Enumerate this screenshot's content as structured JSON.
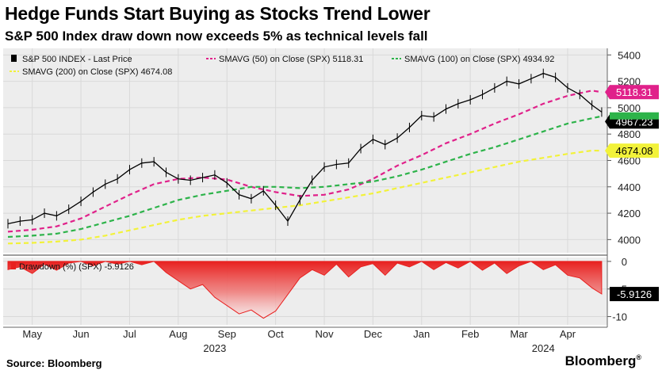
{
  "header": {
    "title": "Hedge Funds Start Buying as Stocks Trend Lower",
    "subtitle": "S&P 500 Index draw down now exceeds 5% as technical levels fall"
  },
  "footer": {
    "source": "Source: Bloomberg",
    "brand": "Bloomberg"
  },
  "colors": {
    "price": "#000000",
    "sma50": "#e0218a",
    "sma100": "#2db34a",
    "sma200": "#f2f23a",
    "drawdown": "#e8201f",
    "grid": "#d9d9d9",
    "panel": "#ededed"
  },
  "chart_data": [
    {
      "type": "line",
      "legend": [
        {
          "key": "price",
          "label": "S&P 500 INDEX - Last Price"
        },
        {
          "key": "sma50",
          "label": "SMAVG (50)  on Close (SPX) 5118.31"
        },
        {
          "key": "sma100",
          "label": "SMAVG (100)  on Close (SPX) 4934.92"
        },
        {
          "key": "sma200",
          "label": "SMAVG (200)  on Close (SPX) 4674.08"
        }
      ],
      "y_ticks": [
        4000,
        4200,
        4400,
        4600,
        4800,
        5000,
        5200,
        5400
      ],
      "ylim": [
        3900,
        5450
      ],
      "month_ticks": [
        "May",
        "Jun",
        "Jul",
        "Aug",
        "Sep",
        "Oct",
        "Nov",
        "Dec",
        "Jan",
        "Feb",
        "Mar",
        "Apr"
      ],
      "years": [
        "2023",
        "2024"
      ],
      "value_tags": [
        {
          "key": "sma50",
          "text": "5118.31"
        },
        {
          "key": "price",
          "text": "4967.23"
        },
        {
          "key": "sma200",
          "text": "4674.08"
        }
      ],
      "x_range": [
        0,
        12.25
      ],
      "series": [
        {
          "key": "price",
          "name": "S&P 500 INDEX - Last Price",
          "x": [
            0,
            0.25,
            0.5,
            0.75,
            1,
            1.25,
            1.5,
            1.75,
            2,
            2.25,
            2.5,
            2.75,
            3,
            3.25,
            3.5,
            3.75,
            4,
            4.25,
            4.5,
            4.75,
            5,
            5.25,
            5.5,
            5.75,
            6,
            6.25,
            6.5,
            6.75,
            7,
            7.25,
            7.5,
            7.75,
            8,
            8.25,
            8.5,
            8.75,
            9,
            9.25,
            9.5,
            9.75,
            10,
            10.25,
            10.5,
            10.75,
            11,
            11.25,
            11.5,
            11.75,
            12,
            12.2
          ],
          "y": [
            4120,
            4140,
            4150,
            4200,
            4180,
            4230,
            4290,
            4360,
            4420,
            4460,
            4530,
            4580,
            4590,
            4510,
            4460,
            4450,
            4470,
            4490,
            4430,
            4340,
            4310,
            4370,
            4260,
            4140,
            4300,
            4450,
            4550,
            4570,
            4580,
            4690,
            4760,
            4720,
            4770,
            4850,
            4940,
            4930,
            4990,
            5030,
            5060,
            5100,
            5150,
            5200,
            5180,
            5220,
            5260,
            5230,
            5150,
            5100,
            5020,
            4967
          ]
        },
        {
          "key": "sma50",
          "name": "SMAVG (50)",
          "x": [
            0,
            0.5,
            1,
            1.5,
            2,
            2.5,
            3,
            3.5,
            4,
            4.5,
            5,
            5.5,
            6,
            6.5,
            7,
            7.5,
            8,
            8.5,
            9,
            9.5,
            10,
            10.5,
            11,
            11.5,
            12,
            12.2
          ],
          "y": [
            4060,
            4075,
            4100,
            4160,
            4250,
            4340,
            4420,
            4460,
            4470,
            4455,
            4400,
            4360,
            4330,
            4340,
            4380,
            4460,
            4560,
            4640,
            4730,
            4800,
            4880,
            4950,
            5030,
            5090,
            5130,
            5118
          ]
        },
        {
          "key": "sma100",
          "name": "SMAVG (100)",
          "x": [
            0,
            0.5,
            1,
            1.5,
            2,
            2.5,
            3,
            3.5,
            4,
            4.5,
            5,
            5.5,
            6,
            6.5,
            7,
            7.5,
            8,
            8.5,
            9,
            9.5,
            10,
            10.5,
            11,
            11.5,
            12,
            12.2
          ],
          "y": [
            4020,
            4030,
            4045,
            4080,
            4130,
            4180,
            4240,
            4300,
            4340,
            4370,
            4400,
            4400,
            4390,
            4400,
            4420,
            4440,
            4480,
            4530,
            4590,
            4650,
            4700,
            4760,
            4820,
            4880,
            4920,
            4935
          ]
        },
        {
          "key": "sma200",
          "name": "SMAVG (200)",
          "x": [
            0,
            0.5,
            1,
            1.5,
            2,
            2.5,
            3,
            3.5,
            4,
            4.5,
            5,
            5.5,
            6,
            6.5,
            7,
            7.5,
            8,
            8.5,
            9,
            9.5,
            10,
            10.5,
            11,
            11.5,
            12,
            12.2
          ],
          "y": [
            3970,
            3975,
            3985,
            4000,
            4030,
            4070,
            4110,
            4150,
            4180,
            4200,
            4220,
            4240,
            4260,
            4290,
            4320,
            4350,
            4390,
            4430,
            4470,
            4510,
            4550,
            4590,
            4620,
            4650,
            4675,
            4674
          ]
        }
      ]
    },
    {
      "type": "area",
      "title": "Drawdown (%) (SPX) -5.9126",
      "y_ticks": [
        0,
        -5,
        -10
      ],
      "y_tick_labels": [
        "0",
        "-5",
        "-10"
      ],
      "ylim": [
        -11.5,
        0.7
      ],
      "x_range": [
        0,
        12.25
      ],
      "last_value": "-5.9126",
      "series": [
        {
          "name": "Drawdown (%) (SPX)",
          "x": [
            0,
            0.25,
            0.5,
            0.75,
            1,
            1.25,
            1.5,
            1.75,
            2,
            2.25,
            2.5,
            2.75,
            3,
            3.25,
            3.5,
            3.75,
            4,
            4.25,
            4.5,
            4.75,
            5,
            5.25,
            5.5,
            5.75,
            6,
            6.25,
            6.5,
            6.75,
            7,
            7.25,
            7.5,
            7.75,
            8,
            8.25,
            8.5,
            8.75,
            9,
            9.25,
            9.5,
            9.75,
            10,
            10.25,
            10.5,
            10.75,
            11,
            11.25,
            11.5,
            11.75,
            12,
            12.2
          ],
          "y": [
            -1.5,
            -1.0,
            -2.2,
            -0.5,
            -1.6,
            -0.3,
            0,
            -0.8,
            0,
            -0.5,
            0,
            -0.6,
            0,
            -2.0,
            -3.5,
            -5.0,
            -4.2,
            -6.5,
            -8.0,
            -9.5,
            -8.8,
            -10.3,
            -9.0,
            -6.0,
            -3.0,
            -1.5,
            -2.5,
            -0.5,
            -2.8,
            -1.0,
            -0.4,
            -2.5,
            -0.3,
            -1.0,
            0,
            -1.5,
            -0.2,
            -1.2,
            0,
            -1.6,
            -0.3,
            -2.2,
            -0.8,
            0,
            -1.5,
            -0.6,
            -2.5,
            -3.0,
            -4.8,
            -5.9
          ]
        }
      ]
    }
  ]
}
